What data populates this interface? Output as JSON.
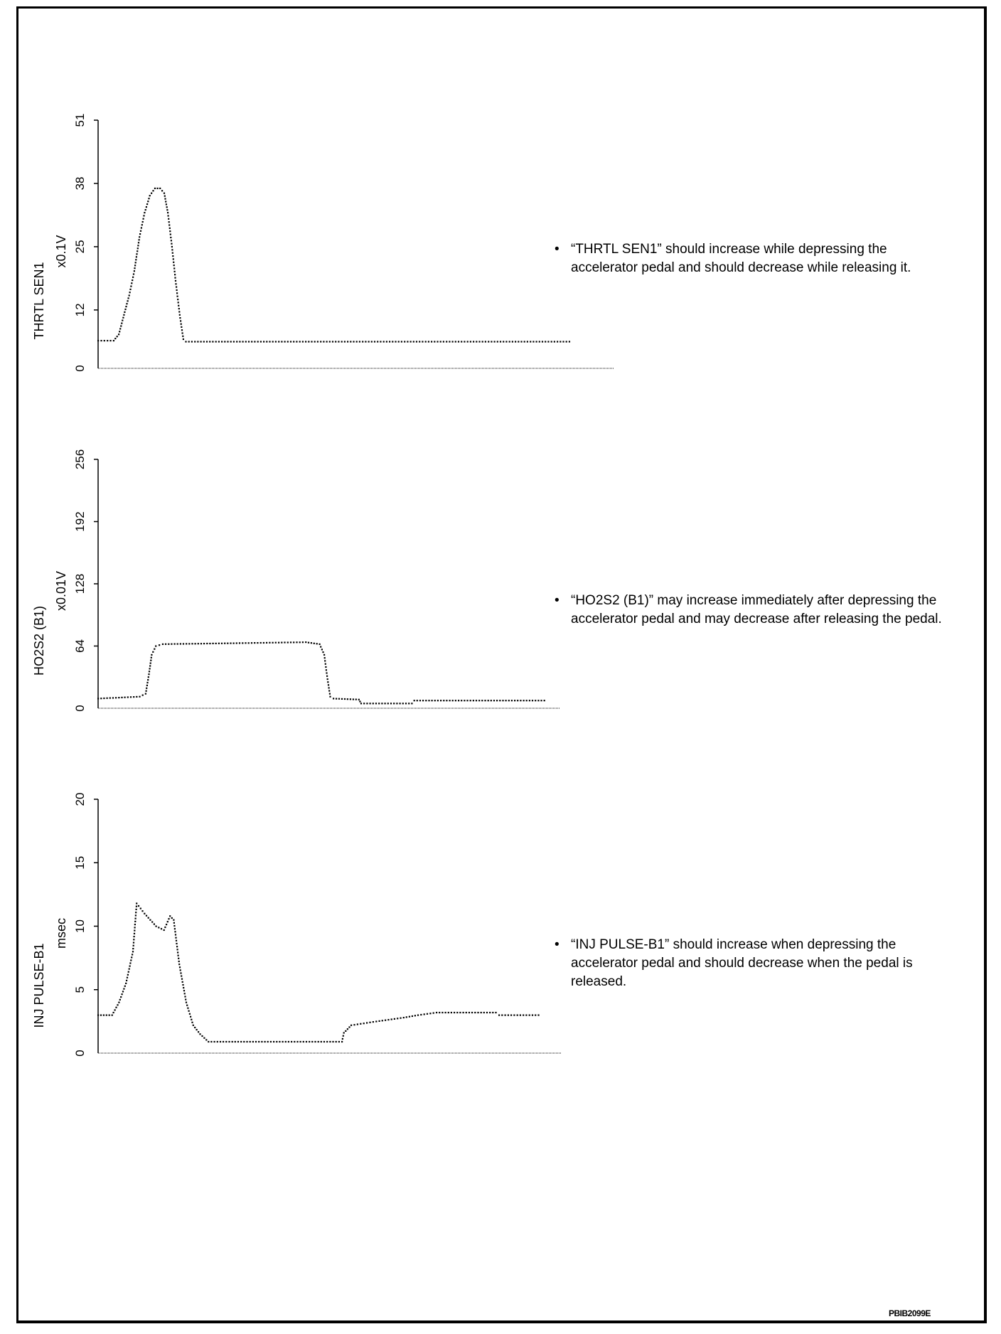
{
  "chart_data": [
    {
      "type": "scatter",
      "title": "THRTL SEN1",
      "ylabel": "THRTL SEN1",
      "yunit": "x0.1V",
      "xlabel": "",
      "ylim": [
        0,
        51
      ],
      "yticks": [
        "0",
        "12",
        "25",
        "38",
        "51"
      ],
      "ytick_values": [
        0,
        12,
        25,
        38,
        51
      ],
      "xlim": [
        0,
        100
      ],
      "grid": false,
      "series": [
        {
          "name": "THRTL SEN1",
          "points": [
            [
              0,
              5.7
            ],
            [
              3,
              5.7
            ],
            [
              4,
              7
            ],
            [
              5,
              11
            ],
            [
              6,
              15
            ],
            [
              7,
              20
            ],
            [
              8,
              27
            ],
            [
              9,
              32
            ],
            [
              10,
              35.5
            ],
            [
              11,
              37
            ],
            [
              12,
              37
            ],
            [
              12.8,
              36
            ],
            [
              13.5,
              32
            ],
            [
              14.3,
              25
            ],
            [
              15,
              18
            ],
            [
              15.8,
              11
            ],
            [
              16.5,
              6
            ],
            [
              17,
              5.5
            ],
            [
              91.3,
              5.5
            ]
          ]
        }
      ]
    },
    {
      "type": "scatter",
      "title": "HO2S2 (B1)",
      "ylabel": "HO2S2 (B1)",
      "yunit": "x0.01V",
      "xlabel": "",
      "ylim": [
        0,
        256
      ],
      "yticks": [
        "0",
        "64",
        "128",
        "192",
        "256"
      ],
      "ytick_values": [
        0,
        64,
        128,
        192,
        256
      ],
      "xlim": [
        0,
        100
      ],
      "grid": false,
      "series": [
        {
          "name": "HO2S2 (B1)",
          "points": [
            [
              0,
              10
            ],
            [
              9,
              12
            ],
            [
              10.3,
              15
            ],
            [
              11,
              35
            ],
            [
              11.6,
              55
            ],
            [
              12.5,
              64
            ],
            [
              14,
              66
            ],
            [
              30,
              67
            ],
            [
              45,
              68
            ],
            [
              48,
              66
            ],
            [
              49,
              55
            ],
            [
              49.7,
              30
            ],
            [
              50.3,
              12
            ],
            [
              51,
              10
            ],
            [
              56.5,
              9
            ],
            [
              57,
              5
            ],
            [
              68,
              5
            ],
            [
              68.5,
              8
            ],
            [
              96.7,
              8
            ]
          ]
        }
      ]
    },
    {
      "type": "scatter",
      "title": "INJ PULSE-B1",
      "ylabel": "INJ PULSE-B1",
      "yunit": "msec",
      "xlabel": "",
      "ylim": [
        0,
        20
      ],
      "yticks": [
        "0",
        "5",
        "10",
        "15",
        "20"
      ],
      "ytick_values": [
        0,
        5,
        10,
        15,
        20
      ],
      "xlim": [
        0,
        100
      ],
      "grid": false,
      "series": [
        {
          "name": "INJ PULSE-B1",
          "points": [
            [
              0,
              3
            ],
            [
              3,
              3
            ],
            [
              4.5,
              4
            ],
            [
              6,
              5.5
            ],
            [
              7.5,
              8
            ],
            [
              8.3,
              11.8
            ],
            [
              10,
              11
            ],
            [
              12.5,
              10
            ],
            [
              14.2,
              9.7
            ],
            [
              15.5,
              10.8
            ],
            [
              16.3,
              10.5
            ],
            [
              17.5,
              7
            ],
            [
              19,
              4
            ],
            [
              20.5,
              2.2
            ],
            [
              22,
              1.5
            ],
            [
              23.8,
              0.9
            ],
            [
              52.6,
              0.9
            ],
            [
              53,
              1.6
            ],
            [
              54.6,
              2.2
            ],
            [
              60,
              2.5
            ],
            [
              65.9,
              2.8
            ],
            [
              69,
              3
            ],
            [
              73,
              3.2
            ],
            [
              85.8,
              3.2
            ],
            [
              86.5,
              3
            ],
            [
              95,
              3
            ]
          ]
        }
      ]
    }
  ],
  "notes": [
    "“THRTL SEN1” should increase while depressing the accelerator pedal and should decrease while releasing it.",
    "“HO2S2 (B1)” may increase immediately after depressing the accelerator pedal and may decrease after releasing the pedal.",
    "“INJ PULSE-B1” should increase when depressing the accelerator pedal and should decrease when the pedal is released."
  ],
  "bullet": "•",
  "figure_id": "PBIB2099E"
}
